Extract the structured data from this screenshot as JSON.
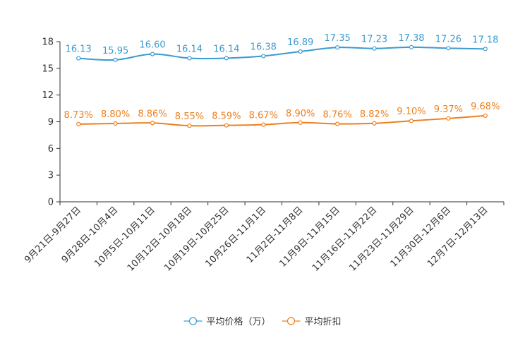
{
  "chart_data": {
    "type": "line",
    "categories": [
      "9月21日-9月27日",
      "9月28日-10月4日",
      "10月5日-10月11日",
      "10月12日-10月18日",
      "10月19日-10月25日",
      "10月26日-11月1日",
      "11月2日-11月8日",
      "11月9日-11月15日",
      "11月16日-11月22日",
      "11月23日-11月29日",
      "11月30日-12月6日",
      "12月7日-12月13日"
    ],
    "series": [
      {
        "name": "平均价格（万）",
        "color": "#3a9bd0",
        "values": [
          16.13,
          15.95,
          16.6,
          16.14,
          16.14,
          16.38,
          16.89,
          17.35,
          17.23,
          17.38,
          17.26,
          17.18
        ],
        "labels": [
          "16.13",
          "15.95",
          "16.60",
          "16.14",
          "16.14",
          "16.38",
          "16.89",
          "17.35",
          "17.23",
          "17.38",
          "17.26",
          "17.18"
        ]
      },
      {
        "name": "平均折扣",
        "color": "#f07f1c",
        "values": [
          8.73,
          8.8,
          8.86,
          8.55,
          8.59,
          8.67,
          8.9,
          8.76,
          8.82,
          9.1,
          9.37,
          9.68
        ],
        "labels": [
          "8.73%",
          "8.80%",
          "8.86%",
          "8.55%",
          "8.59%",
          "8.67%",
          "8.90%",
          "8.76%",
          "8.82%",
          "9.10%",
          "9.37%",
          "9.68%"
        ]
      }
    ],
    "ylim": [
      0,
      18
    ],
    "yticks": [
      "0",
      "3",
      "6",
      "9",
      "12",
      "15",
      "18"
    ],
    "title": "",
    "xlabel": "",
    "ylabel": "",
    "legend": "bottom-center",
    "grid": false
  }
}
